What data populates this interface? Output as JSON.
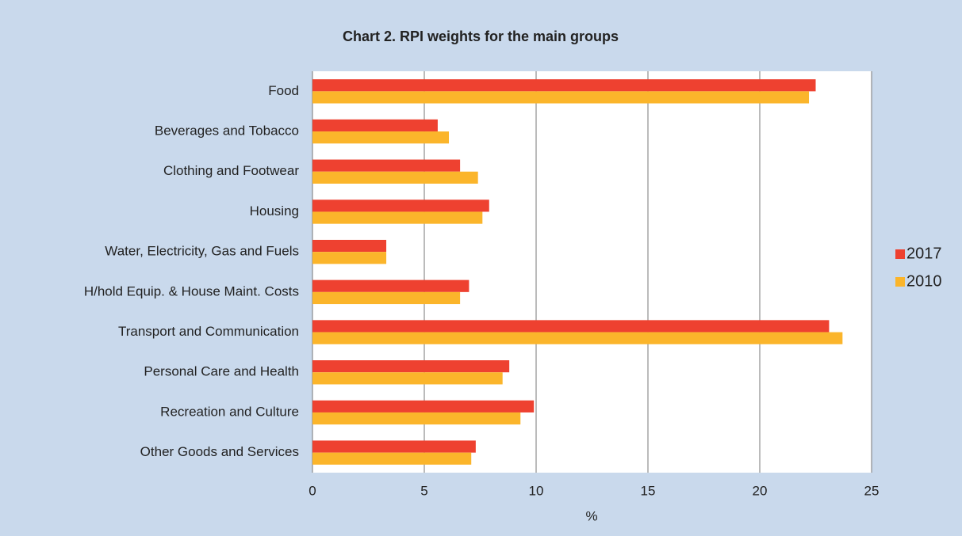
{
  "chart_data": {
    "type": "bar",
    "orientation": "horizontal",
    "title": "Chart 2.  RPI weights for the main groups",
    "xlabel": "%",
    "categories": [
      "Food",
      "Beverages and Tobacco",
      "Clothing and Footwear",
      "Housing",
      "Water, Electricity, Gas and Fuels",
      "H/hold Equip. & House Maint. Costs",
      "Transport and Communication",
      "Personal Care and Health",
      "Recreation and Culture",
      "Other Goods and Services"
    ],
    "series": [
      {
        "name": "2017",
        "color": "#ee4130",
        "values": [
          22.5,
          5.6,
          6.6,
          7.9,
          3.3,
          7.0,
          23.1,
          8.8,
          9.9,
          7.3
        ]
      },
      {
        "name": "2010",
        "color": "#fbb52b",
        "values": [
          22.2,
          6.1,
          7.4,
          7.6,
          3.3,
          6.6,
          23.7,
          8.5,
          9.3,
          7.1
        ]
      }
    ],
    "xlim": [
      0,
      25
    ],
    "xticks": [
      0,
      5,
      10,
      15,
      20,
      25
    ],
    "grid": true,
    "legend": "right"
  }
}
